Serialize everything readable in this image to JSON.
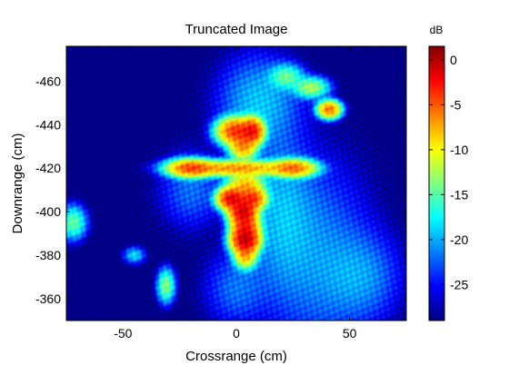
{
  "chart_data": {
    "type": "heatmap",
    "title": "Truncated Image",
    "xlabel": "Crossrange (cm)",
    "ylabel": "Downrange (cm)",
    "colorbar_label": "dB",
    "xlim": [
      -75,
      75
    ],
    "ylim": [
      -350,
      -476
    ],
    "clim": [
      -29,
      1.5
    ],
    "xticks": [
      -50,
      0,
      50
    ],
    "xtick_labels": [
      "-50",
      "0",
      "50"
    ],
    "yticks": [
      -460,
      -440,
      -420,
      -400,
      -380,
      -360
    ],
    "ytick_labels": [
      "-460",
      "-440",
      "-420",
      "-400",
      "-380",
      "-360"
    ],
    "cticks": [
      0,
      -5,
      -10,
      -15,
      -20,
      -25
    ],
    "ctick_labels": [
      "0",
      "-5",
      "-10",
      "-15",
      "-20",
      "-25"
    ],
    "colormap": "jet",
    "grid": false,
    "background_db": -29,
    "features": [
      {
        "x": 0,
        "y": -420,
        "sx": 12,
        "sy": 1.8,
        "db": -6
      },
      {
        "x": -20,
        "y": -420,
        "sx": 5,
        "sy": 2,
        "db": -4
      },
      {
        "x": 25,
        "y": -420,
        "sx": 5,
        "sy": 2,
        "db": -5
      },
      {
        "x": 0,
        "y": -437,
        "sx": 4,
        "sy": 3,
        "db": -3
      },
      {
        "x": 7,
        "y": -437,
        "sx": 2.5,
        "sy": 3,
        "db": -2
      },
      {
        "x": 3,
        "y": -430,
        "sx": 3,
        "sy": 3,
        "db": -6
      },
      {
        "x": 4,
        "y": -412,
        "sx": 4,
        "sy": 3,
        "db": -7
      },
      {
        "x": -2,
        "y": -406,
        "sx": 3,
        "sy": 2.5,
        "db": -1
      },
      {
        "x": 7,
        "y": -406,
        "sx": 3,
        "sy": 2.5,
        "db": -3
      },
      {
        "x": 3,
        "y": -400,
        "sx": 3,
        "sy": 3,
        "db": -0.5
      },
      {
        "x": 4,
        "y": -393,
        "sx": 3,
        "sy": 3,
        "db": -3
      },
      {
        "x": 4,
        "y": -387,
        "sx": 3,
        "sy": 3,
        "db": 0
      },
      {
        "x": 4,
        "y": -380,
        "sx": 2.5,
        "sy": 3,
        "db": -7
      },
      {
        "x": 41,
        "y": -447,
        "sx": 2.5,
        "sy": 2,
        "db": -5
      },
      {
        "x": 33,
        "y": -457,
        "sx": 4,
        "sy": 2.5,
        "db": -12
      },
      {
        "x": 22,
        "y": -462,
        "sx": 4,
        "sy": 3,
        "db": -14
      },
      {
        "x": -72,
        "y": -395,
        "sx": 3,
        "sy": 4,
        "db": -14
      },
      {
        "x": -31,
        "y": -366,
        "sx": 2,
        "sy": 4,
        "db": -13
      },
      {
        "x": -45,
        "y": -380,
        "sx": 2.5,
        "sy": 2,
        "db": -18
      },
      {
        "x": 20,
        "y": -400,
        "sx": 8,
        "sy": 20,
        "db": -20
      },
      {
        "x": 35,
        "y": -380,
        "sx": 14,
        "sy": 25,
        "db": -21
      },
      {
        "x": 55,
        "y": -370,
        "sx": 10,
        "sy": 12,
        "db": -21
      },
      {
        "x": 10,
        "y": -450,
        "sx": 10,
        "sy": 12,
        "db": -19
      },
      {
        "x": -20,
        "y": -410,
        "sx": 8,
        "sy": 10,
        "db": -22
      },
      {
        "x": 0,
        "y": -365,
        "sx": 8,
        "sy": 10,
        "db": -22
      }
    ]
  }
}
